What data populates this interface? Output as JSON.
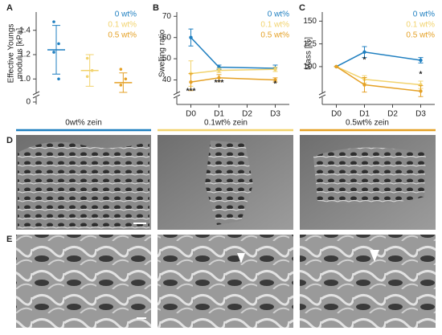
{
  "chart_data": [
    {
      "type": "dotplot",
      "label": "A",
      "ylabel": [
        "Effective Youngs",
        "modulus [kPa]"
      ],
      "ylim": [
        0.87,
        1.55
      ],
      "yticks": [
        0,
        {
          "value": 1.0,
          "label": "1.0"
        },
        {
          "value": 1.2,
          "label": "1.2"
        },
        {
          "value": 1.4,
          "label": "1.4"
        }
      ],
      "axis_break": true,
      "series": [
        {
          "name": "0 wt%",
          "color": "#1f7fc0",
          "values": [
            1.24
          ],
          "errors": [
            0.2
          ],
          "points": [
            1.47,
            1.29,
            1.22,
            1.0
          ]
        },
        {
          "name": "0.1 wt%",
          "color": "#f2d36e",
          "values": [
            1.07
          ],
          "errors": [
            0.13
          ],
          "points": [
            1.17,
            1.07,
            1.02
          ]
        },
        {
          "name": "0.5 wt%",
          "color": "#e5a126",
          "values": [
            0.97
          ],
          "errors": [
            0.08
          ],
          "points": [
            1.08,
            1.0,
            0.95
          ]
        }
      ]
    },
    {
      "type": "line",
      "label": "B",
      "ylabel": [
        "Swelling ratio"
      ],
      "x": [
        0,
        1,
        3
      ],
      "xlim": [
        -0.5,
        3.5
      ],
      "xticks": [
        {
          "value": 0,
          "label": "D0"
        },
        {
          "value": 1,
          "label": "D1"
        },
        {
          "value": 2,
          "label": "D2"
        },
        {
          "value": 3,
          "label": "D3"
        }
      ],
      "ylim": [
        33,
        72
      ],
      "yticks": [
        40,
        50,
        60,
        70
      ],
      "axis_break": true,
      "series": [
        {
          "name": "0 wt%",
          "color": "#1f7fc0",
          "values": [
            60,
            46,
            45.5
          ],
          "errors": [
            4,
            1,
            1.5
          ]
        },
        {
          "name": "0.1 wt%",
          "color": "#f2d36e",
          "values": [
            43,
            44.5,
            45
          ],
          "errors": [
            6,
            1,
            1
          ]
        },
        {
          "name": "0.5 wt%",
          "color": "#e5a126",
          "values": [
            39,
            41,
            40
          ],
          "errors": [
            4,
            1.5,
            1
          ]
        }
      ],
      "annotations": [
        {
          "text": "***",
          "x": 0,
          "y": 34.5
        },
        {
          "text": "***",
          "x": 1,
          "y": 38.5
        },
        {
          "text": "*",
          "x": 3,
          "y": 38
        }
      ]
    },
    {
      "type": "line",
      "label": "C",
      "ylabel": [
        "Mass [%]"
      ],
      "x": [
        0,
        1,
        3
      ],
      "xlim": [
        -0.5,
        3.5
      ],
      "xticks": [
        {
          "value": 0,
          "label": "D0"
        },
        {
          "value": 1,
          "label": "D1"
        },
        {
          "value": 2,
          "label": "D2"
        },
        {
          "value": 3,
          "label": "D3"
        }
      ],
      "ylim": [
        69,
        160
      ],
      "yticks": [
        100,
        125,
        150
      ],
      "axis_break": true,
      "series": [
        {
          "name": "0 wt%",
          "color": "#1f7fc0",
          "values": [
            100,
            116,
            107
          ],
          "errors": [
            0,
            6,
            3
          ]
        },
        {
          "name": "0.1 wt%",
          "color": "#f2d36e",
          "values": [
            100,
            86,
            80
          ],
          "errors": [
            0,
            4,
            4
          ]
        },
        {
          "name": "0.5 wt%",
          "color": "#e5a126",
          "values": [
            100,
            80,
            73
          ],
          "errors": [
            0,
            8,
            6
          ]
        }
      ],
      "annotations": [
        {
          "text": "*",
          "x": 1,
          "y": 107
        },
        {
          "text": "*",
          "x": 3,
          "y": 91
        }
      ]
    }
  ],
  "images": {
    "label_d": "D",
    "label_e": "E",
    "columns": [
      "0wt% zein",
      "0.1wt% zein",
      "0.5wt% zein"
    ]
  }
}
